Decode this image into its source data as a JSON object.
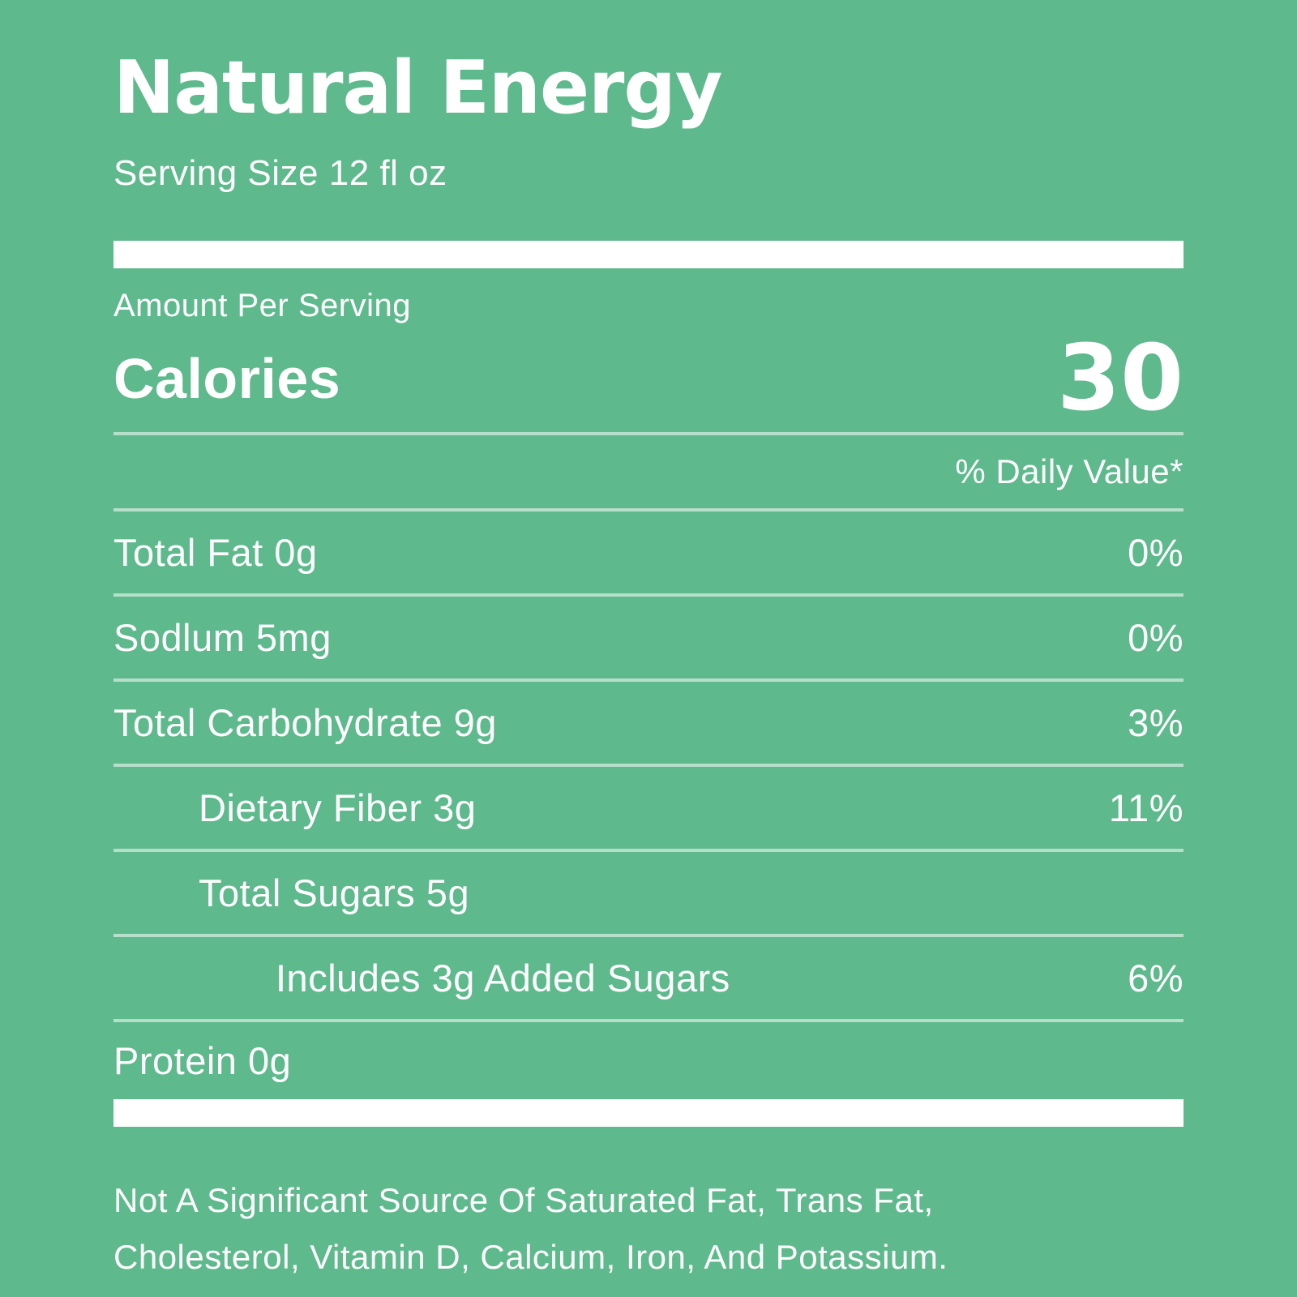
{
  "label": {
    "title": "Natural Energy",
    "serving_size": "Serving Size 12 fl oz",
    "amount_per_serving": "Amount Per Serving",
    "calories_label": "Calories",
    "calories_value": "30",
    "daily_value_header": "% Daily Value*",
    "rows": [
      {
        "label": "Total Fat 0g",
        "value": "0%",
        "indent": 0
      },
      {
        "label": "Sodlum 5mg",
        "value": "0%",
        "indent": 0
      },
      {
        "label": "Total Carbohydrate 9g",
        "value": "3%",
        "indent": 0
      },
      {
        "label": "Dietary Fiber 3g",
        "value": "11%",
        "indent": 1
      },
      {
        "label": "Total Sugars 5g",
        "value": "",
        "indent": 1
      },
      {
        "label": "Includes 3g Added Sugars",
        "value": "6%",
        "indent": 2
      },
      {
        "label": "Protein 0g",
        "value": "",
        "indent": 0
      }
    ],
    "footnote_lines": [
      "Not A Significant Source Of Saturated Fat, Trans Fat,",
      "Cholesterol, Vitamin D, Calcium, Iron, And Potassium."
    ],
    "colors": {
      "background": "#5eb98c",
      "text": "#ffffff",
      "divider": "rgba(255,255,255,0.55)",
      "bar": "#ffffff"
    }
  }
}
